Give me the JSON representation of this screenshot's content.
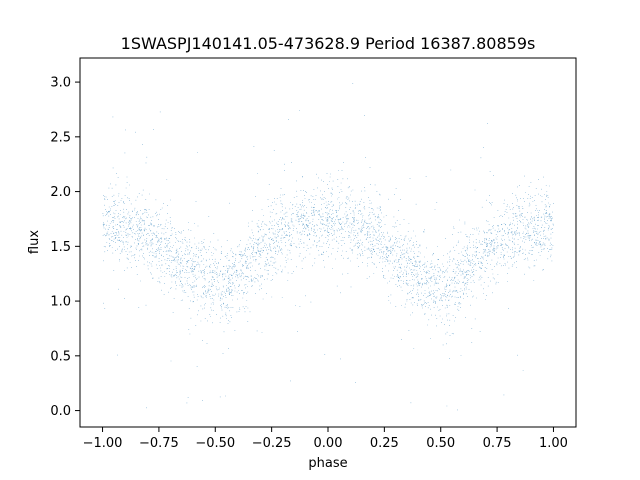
{
  "chart_data": {
    "type": "scatter",
    "title": "1SWASPJ140141.05-473628.9 Period 16387.80859s",
    "xlabel": "phase",
    "ylabel": "flux",
    "xlim": [
      -1.1,
      1.1
    ],
    "ylim": [
      -0.15,
      3.22
    ],
    "x_ticks": [
      -1.0,
      -0.75,
      -0.5,
      -0.25,
      0.0,
      0.25,
      0.5,
      0.75,
      1.0
    ],
    "x_tick_labels": [
      "−1.00",
      "−0.75",
      "−0.50",
      "−0.25",
      "0.00",
      "0.25",
      "0.50",
      "0.75",
      "1.00"
    ],
    "y_ticks": [
      0.0,
      0.5,
      1.0,
      1.5,
      2.0,
      2.5,
      3.0
    ],
    "y_tick_labels": [
      "0.0",
      "0.5",
      "1.0",
      "1.5",
      "2.0",
      "2.5",
      "3.0"
    ],
    "grid": false,
    "legend": "none",
    "marker_color": "#1f77b4",
    "series": [
      {
        "phase_curve": {
          "x": [
            -1.0,
            -0.9,
            -0.8,
            -0.7,
            -0.6,
            -0.5,
            -0.45,
            -0.4,
            -0.3,
            -0.2,
            -0.1,
            0.0,
            0.1,
            0.2,
            0.3,
            0.4,
            0.5,
            0.55,
            0.6,
            0.7,
            0.8,
            0.9,
            1.0
          ],
          "y": [
            1.68,
            1.65,
            1.58,
            1.45,
            1.28,
            1.15,
            1.15,
            1.22,
            1.45,
            1.62,
            1.72,
            1.75,
            1.7,
            1.6,
            1.42,
            1.22,
            1.12,
            1.15,
            1.28,
            1.45,
            1.6,
            1.66,
            1.68
          ]
        },
        "scatter_sigma": 0.17,
        "point_count": 26000
      }
    ]
  }
}
